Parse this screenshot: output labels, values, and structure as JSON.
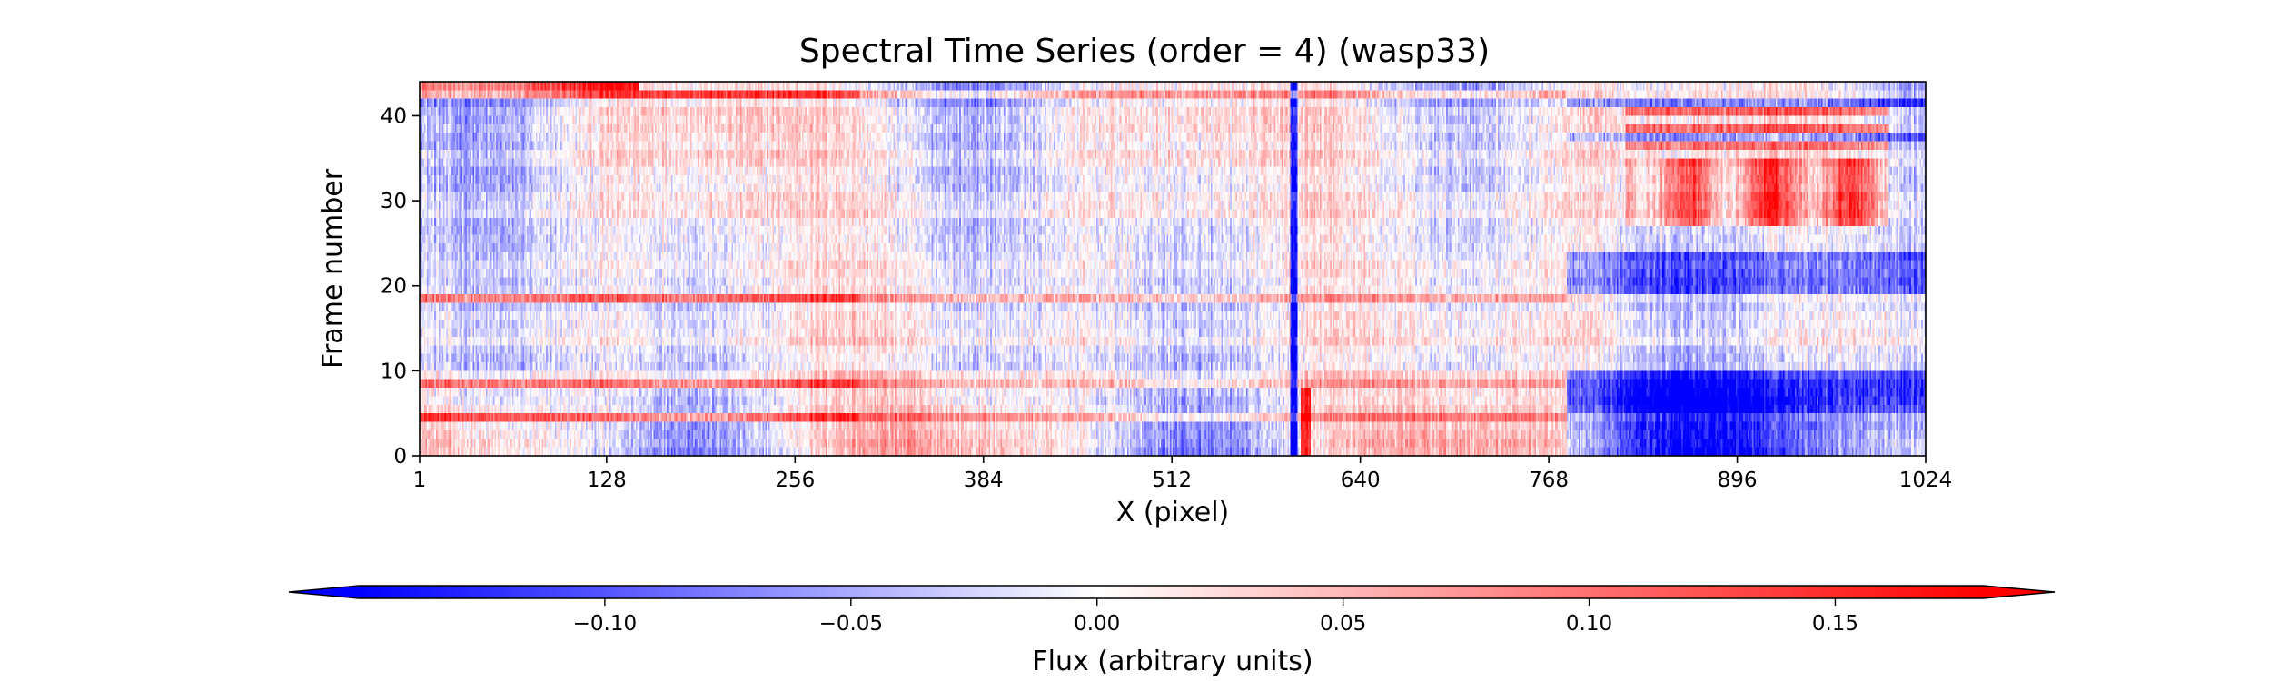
{
  "chart_data": {
    "type": "heatmap",
    "title": "Spectral Time Series (order = 4) (wasp33)",
    "xlabel": "X (pixel)",
    "ylabel": "Frame number",
    "xlim": [
      1,
      1024
    ],
    "ylim": [
      0,
      44
    ],
    "x_ticks": [
      "1",
      "128",
      "256",
      "384",
      "512",
      "640",
      "768",
      "896",
      "1024"
    ],
    "x_tick_values": [
      1,
      128,
      256,
      384,
      512,
      640,
      768,
      896,
      1024
    ],
    "y_ticks": [
      "0",
      "10",
      "20",
      "30",
      "40"
    ],
    "y_tick_values": [
      0,
      10,
      20,
      30,
      40
    ],
    "n_frames": 44,
    "n_pixels": 1024,
    "grid": false,
    "colormap": "bwr",
    "colormap_colors": [
      "#0000ff",
      "#ffffff",
      "#ff0000"
    ],
    "color_range": [
      -0.15,
      0.18
    ],
    "colorbar": {
      "label": "Flux (arbitrary units)",
      "orientation": "horizontal",
      "extend": "both",
      "ticks": [
        "−0.10",
        "−0.05",
        "0.00",
        "0.05",
        "0.10",
        "0.15"
      ],
      "tick_values": [
        -0.1,
        -0.05,
        0.0,
        0.05,
        0.1,
        0.15
      ]
    },
    "notable_features": {
      "hot_rows": [
        4,
        8,
        18,
        42
      ],
      "dark_column_near_pixel": 595,
      "blue_band_rows": [
        0,
        9
      ],
      "blue_band_x_range": [
        780,
        1024
      ],
      "red_band_rows": [
        27,
        34
      ],
      "red_band_x_range": [
        820,
        1000
      ]
    }
  }
}
